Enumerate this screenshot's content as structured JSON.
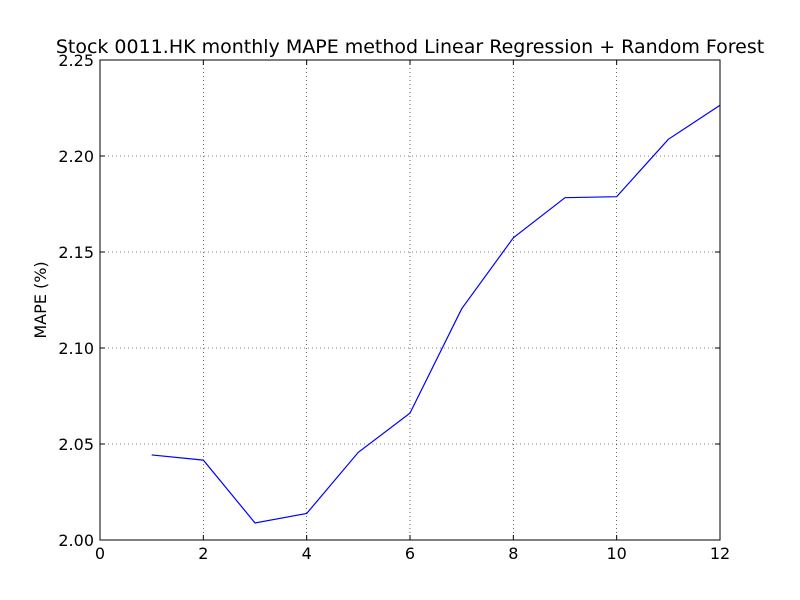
{
  "chart_data": {
    "type": "line",
    "title": "Stock 0011.HK monthly MAPE method Linear Regression + Random Forest",
    "xlabel": "",
    "ylabel": "MAPE (%)",
    "xlim": [
      0,
      12
    ],
    "ylim": [
      2.0,
      2.25
    ],
    "xticks": [
      "0",
      "2",
      "4",
      "6",
      "8",
      "10",
      "12"
    ],
    "yticks": [
      "2.00",
      "2.05",
      "2.10",
      "2.15",
      "2.20",
      "2.25"
    ],
    "grid": true,
    "series": [
      {
        "color": "#0000ff",
        "x": [
          1,
          2,
          3,
          4,
          5,
          6,
          7,
          8,
          9,
          10,
          11,
          12
        ],
        "y": [
          2.0443,
          2.0416,
          2.0089,
          2.0138,
          2.0457,
          2.0661,
          2.1204,
          2.1574,
          2.1783,
          2.1788,
          2.2087,
          2.2264
        ]
      }
    ]
  }
}
